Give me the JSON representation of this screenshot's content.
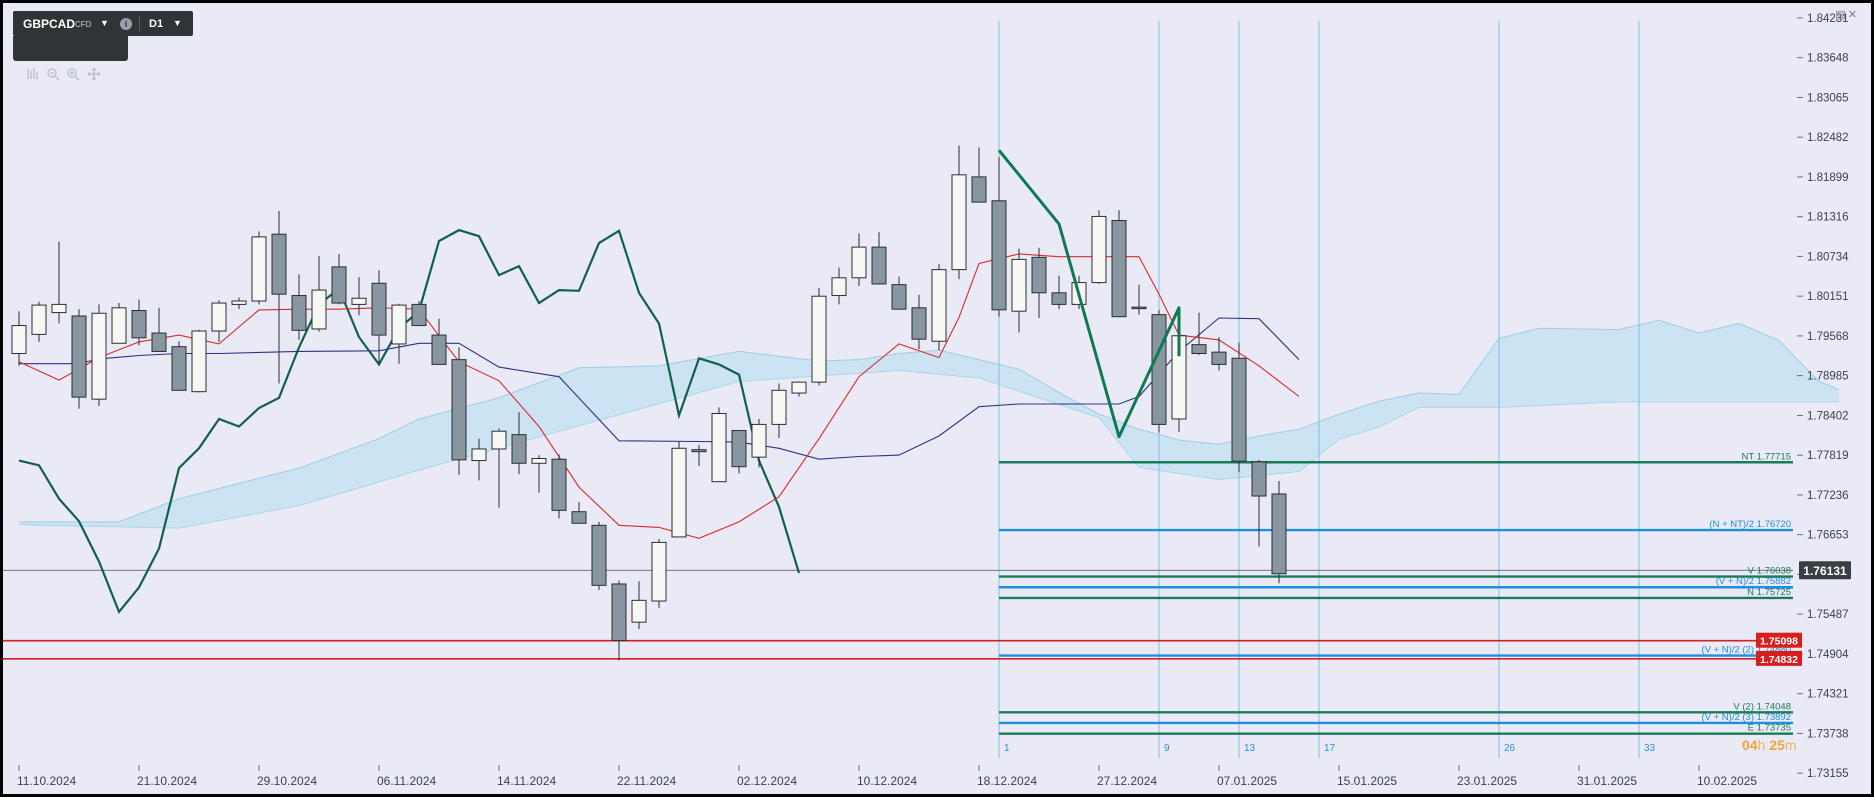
{
  "toolbar": {
    "symbol": "GBPCAD",
    "instrument_type": "CFD",
    "info_icon": "info-icon",
    "timeframe": "D1",
    "tools": [
      "indicators-icon",
      "zoom-out-icon",
      "zoom-in-icon",
      "crosshair-icon"
    ]
  },
  "window_controls": [
    "restore-icon",
    "close-icon"
  ],
  "countdown": {
    "hours": "04",
    "h_unit": "h",
    "minutes": "25",
    "m_unit": "m"
  },
  "colors": {
    "background": "#e9eaf5",
    "candle_bull": "#f7f7f4",
    "candle_bear": "#87969f",
    "tenkan": "#d92b2b",
    "kijun": "#2e3285",
    "chikou": "#11604a",
    "kumo": "#bcdff0",
    "wave": "#0f7a52",
    "target_blue": "#1e8ee0",
    "target_green": "#1a7a5a",
    "red_level": "#d81e1e",
    "current_price_bg": "#3a3f44"
  },
  "chart_data": {
    "type": "candlestick",
    "title": "GBPCAD CFD D1",
    "ylim": [
      1.7285,
      1.8445
    ],
    "y_ticks": [
      "1.84231",
      "1.83648",
      "1.83065",
      "1.82482",
      "1.81899",
      "1.81316",
      "1.80734",
      "1.80151",
      "1.79568",
      "1.78985",
      "1.78402",
      "1.77819",
      "1.77236",
      "1.76653",
      "1.76070",
      "1.75487",
      "1.74904",
      "1.74321",
      "1.73738",
      "1.73155"
    ],
    "x_labels": [
      {
        "i": 0,
        "label": "11.10.2024"
      },
      {
        "i": 6,
        "label": "21.10.2024"
      },
      {
        "i": 12,
        "label": "29.10.2024"
      },
      {
        "i": 18,
        "label": "06.11.2024"
      },
      {
        "i": 24,
        "label": "14.11.2024"
      },
      {
        "i": 30,
        "label": "22.11.2024"
      },
      {
        "i": 36,
        "label": "02.12.2024"
      },
      {
        "i": 42,
        "label": "10.12.2024"
      },
      {
        "i": 48,
        "label": "18.12.2024"
      },
      {
        "i": 54,
        "label": "27.12.2024"
      },
      {
        "i": 60,
        "label": "07.01.2025"
      },
      {
        "i": 66,
        "label": "15.01.2025"
      },
      {
        "i": 72,
        "label": "23.01.2025"
      },
      {
        "i": 78,
        "label": "31.01.2025"
      },
      {
        "i": 84,
        "label": "10.02.2025"
      }
    ],
    "candles": [
      {
        "o": 1.7931,
        "h": 1.7993,
        "l": 1.7913,
        "c": 1.7972
      },
      {
        "o": 1.7959,
        "h": 1.8007,
        "l": 1.7948,
        "c": 1.8002
      },
      {
        "o": 1.7991,
        "h": 1.8095,
        "l": 1.7975,
        "c": 1.8003
      },
      {
        "o": 1.7986,
        "h": 1.7996,
        "l": 1.785,
        "c": 1.7867
      },
      {
        "o": 1.7864,
        "h": 1.8003,
        "l": 1.7854,
        "c": 1.799
      },
      {
        "o": 1.7946,
        "h": 1.8005,
        "l": 1.7948,
        "c": 1.7998
      },
      {
        "o": 1.7994,
        "h": 1.801,
        "l": 1.7943,
        "c": 1.7954
      },
      {
        "o": 1.7961,
        "h": 1.7998,
        "l": 1.7936,
        "c": 1.7934
      },
      {
        "o": 1.7941,
        "h": 1.7949,
        "l": 1.7876,
        "c": 1.7877
      },
      {
        "o": 1.7875,
        "h": 1.7966,
        "l": 1.7874,
        "c": 1.7964
      },
      {
        "o": 1.7964,
        "h": 1.8009,
        "l": 1.7948,
        "c": 1.8005
      },
      {
        "o": 1.8003,
        "h": 1.8013,
        "l": 1.7996,
        "c": 1.8008
      },
      {
        "o": 1.8008,
        "h": 1.811,
        "l": 1.8003,
        "c": 1.8102
      },
      {
        "o": 1.8106,
        "h": 1.814,
        "l": 1.7887,
        "c": 1.8018
      },
      {
        "o": 1.8016,
        "h": 1.8047,
        "l": 1.7951,
        "c": 1.7965
      },
      {
        "o": 1.7967,
        "h": 1.8074,
        "l": 1.7963,
        "c": 1.8024
      },
      {
        "o": 1.8058,
        "h": 1.8077,
        "l": 1.8003,
        "c": 1.8005
      },
      {
        "o": 1.8003,
        "h": 1.8043,
        "l": 1.7987,
        "c": 1.8012
      },
      {
        "o": 1.8034,
        "h": 1.8053,
        "l": 1.7914,
        "c": 1.7958
      },
      {
        "o": 1.7945,
        "h": 1.8004,
        "l": 1.7916,
        "c": 1.8002
      },
      {
        "o": 1.8003,
        "h": 1.8008,
        "l": 1.7971,
        "c": 1.7972
      },
      {
        "o": 1.7958,
        "h": 1.7982,
        "l": 1.7918,
        "c": 1.7915
      },
      {
        "o": 1.7922,
        "h": 1.794,
        "l": 1.7753,
        "c": 1.7775
      },
      {
        "o": 1.7774,
        "h": 1.7806,
        "l": 1.7745,
        "c": 1.7791
      },
      {
        "o": 1.7791,
        "h": 1.7821,
        "l": 1.7705,
        "c": 1.7817
      },
      {
        "o": 1.7812,
        "h": 1.7845,
        "l": 1.7754,
        "c": 1.777
      },
      {
        "o": 1.777,
        "h": 1.7782,
        "l": 1.7727,
        "c": 1.7777
      },
      {
        "o": 1.7776,
        "h": 1.7783,
        "l": 1.7689,
        "c": 1.7701
      },
      {
        "o": 1.7699,
        "h": 1.7713,
        "l": 1.7684,
        "c": 1.7682
      },
      {
        "o": 1.7679,
        "h": 1.7684,
        "l": 1.7584,
        "c": 1.7591
      },
      {
        "o": 1.7593,
        "h": 1.7598,
        "l": 1.7481,
        "c": 1.751
      },
      {
        "o": 1.7537,
        "h": 1.7597,
        "l": 1.7527,
        "c": 1.7569
      },
      {
        "o": 1.7568,
        "h": 1.7659,
        "l": 1.7558,
        "c": 1.7654
      },
      {
        "o": 1.7662,
        "h": 1.7802,
        "l": 1.7662,
        "c": 1.7792
      },
      {
        "o": 1.779,
        "h": 1.7797,
        "l": 1.7766,
        "c": 1.7787
      },
      {
        "o": 1.7743,
        "h": 1.7852,
        "l": 1.7749,
        "c": 1.7843
      },
      {
        "o": 1.7818,
        "h": 1.7813,
        "l": 1.7755,
        "c": 1.7765
      },
      {
        "o": 1.7779,
        "h": 1.7835,
        "l": 1.7764,
        "c": 1.7827
      },
      {
        "o": 1.7827,
        "h": 1.7887,
        "l": 1.7807,
        "c": 1.7877
      },
      {
        "o": 1.7873,
        "h": 1.789,
        "l": 1.7868,
        "c": 1.7889
      },
      {
        "o": 1.7889,
        "h": 1.8027,
        "l": 1.7884,
        "c": 1.8015
      },
      {
        "o": 1.8016,
        "h": 1.8057,
        "l": 1.8003,
        "c": 1.8042
      },
      {
        "o": 1.8042,
        "h": 1.8107,
        "l": 1.803,
        "c": 1.8087
      },
      {
        "o": 1.8087,
        "h": 1.8109,
        "l": 1.8032,
        "c": 1.8033
      },
      {
        "o": 1.8032,
        "h": 1.8044,
        "l": 1.7995,
        "c": 1.7996
      },
      {
        "o": 1.7998,
        "h": 1.8017,
        "l": 1.7937,
        "c": 1.7952
      },
      {
        "o": 1.7949,
        "h": 1.8062,
        "l": 1.7936,
        "c": 1.8054
      },
      {
        "o": 1.8054,
        "h": 1.8236,
        "l": 1.804,
        "c": 1.8193
      },
      {
        "o": 1.819,
        "h": 1.8233,
        "l": 1.8152,
        "c": 1.8153
      },
      {
        "o": 1.8155,
        "h": 1.8219,
        "l": 1.7985,
        "c": 1.7995
      },
      {
        "o": 1.7993,
        "h": 1.8085,
        "l": 1.7962,
        "c": 1.8069
      },
      {
        "o": 1.8072,
        "h": 1.8086,
        "l": 1.7983,
        "c": 1.802
      },
      {
        "o": 1.802,
        "h": 1.8045,
        "l": 1.7996,
        "c": 1.8003
      },
      {
        "o": 1.8003,
        "h": 1.8045,
        "l": 1.7996,
        "c": 1.8035
      },
      {
        "o": 1.8035,
        "h": 1.8141,
        "l": 1.8033,
        "c": 1.8132
      },
      {
        "o": 1.8126,
        "h": 1.8141,
        "l": 1.7984,
        "c": 1.7985
      },
      {
        "o": 1.7999,
        "h": 1.8032,
        "l": 1.7988,
        "c": 1.7998
      },
      {
        "o": 1.7988,
        "h": 1.7995,
        "l": 1.7815,
        "c": 1.7827
      },
      {
        "o": 1.7835,
        "h": 1.7984,
        "l": 1.7816,
        "c": 1.7957
      },
      {
        "o": 1.7944,
        "h": 1.7991,
        "l": 1.7929,
        "c": 1.7931
      },
      {
        "o": 1.7933,
        "h": 1.7955,
        "l": 1.7906,
        "c": 1.7915
      },
      {
        "o": 1.7924,
        "h": 1.7947,
        "l": 1.7757,
        "c": 1.7773
      },
      {
        "o": 1.7772,
        "h": 1.7775,
        "l": 1.7648,
        "c": 1.7722
      },
      {
        "o": 1.7725,
        "h": 1.7744,
        "l": 1.7594,
        "c": 1.7608
      }
    ],
    "tenkan_sen": [
      [
        0,
        1.7919
      ],
      [
        2,
        1.7892
      ],
      [
        4,
        1.7925
      ],
      [
        6,
        1.7948
      ],
      [
        8,
        1.7958
      ],
      [
        10,
        1.7945
      ],
      [
        12,
        1.7995
      ],
      [
        14,
        1.7996
      ],
      [
        16,
        1.7996
      ],
      [
        18,
        1.7998
      ],
      [
        20,
        1.7996
      ],
      [
        21,
        1.7957
      ],
      [
        22,
        1.7919
      ],
      [
        24,
        1.7891
      ],
      [
        26,
        1.7824
      ],
      [
        28,
        1.7735
      ],
      [
        30,
        1.7679
      ],
      [
        32,
        1.7676
      ],
      [
        34,
        1.766
      ],
      [
        36,
        1.7684
      ],
      [
        38,
        1.7721
      ],
      [
        40,
        1.7806
      ],
      [
        42,
        1.7897
      ],
      [
        44,
        1.7945
      ],
      [
        46,
        1.7925
      ],
      [
        47,
        1.7984
      ],
      [
        48,
        1.8063
      ],
      [
        50,
        1.8077
      ],
      [
        52,
        1.8073
      ],
      [
        54,
        1.8073
      ],
      [
        56,
        1.8073
      ],
      [
        57,
        1.8018
      ],
      [
        58,
        1.7958
      ],
      [
        60,
        1.7951
      ],
      [
        62,
        1.7913
      ],
      [
        64,
        1.7868
      ]
    ],
    "kijun_sen": [
      [
        0,
        1.7916
      ],
      [
        3,
        1.7916
      ],
      [
        4,
        1.7923
      ],
      [
        6,
        1.7928
      ],
      [
        8,
        1.7931
      ],
      [
        10,
        1.7931
      ],
      [
        14,
        1.7934
      ],
      [
        18,
        1.7935
      ],
      [
        20,
        1.7946
      ],
      [
        22,
        1.7946
      ],
      [
        24,
        1.7911
      ],
      [
        27,
        1.7897
      ],
      [
        30,
        1.7803
      ],
      [
        34,
        1.7802
      ],
      [
        36,
        1.7801
      ],
      [
        38,
        1.7792
      ],
      [
        40,
        1.7776
      ],
      [
        42,
        1.778
      ],
      [
        44,
        1.7782
      ],
      [
        46,
        1.781
      ],
      [
        48,
        1.7853
      ],
      [
        50,
        1.7857
      ],
      [
        52,
        1.7857
      ],
      [
        55,
        1.7857
      ],
      [
        56,
        1.7868
      ],
      [
        58,
        1.7934
      ],
      [
        60,
        1.7983
      ],
      [
        62,
        1.7982
      ],
      [
        64,
        1.7922
      ]
    ],
    "chikou_span": [
      [
        0,
        1.7774
      ],
      [
        1,
        1.7767
      ],
      [
        2,
        1.7718
      ],
      [
        3,
        1.7685
      ],
      [
        4,
        1.7626
      ],
      [
        5,
        1.7552
      ],
      [
        6,
        1.7588
      ],
      [
        7,
        1.7645
      ],
      [
        8,
        1.7763
      ],
      [
        9,
        1.7792
      ],
      [
        10,
        1.7835
      ],
      [
        11,
        1.7824
      ],
      [
        12,
        1.7851
      ],
      [
        13,
        1.7866
      ],
      [
        14,
        1.794
      ],
      [
        15,
        1.8003
      ],
      [
        16,
        1.8026
      ],
      [
        17,
        1.7955
      ],
      [
        18,
        1.7915
      ],
      [
        19,
        1.7968
      ],
      [
        20,
        1.7993
      ],
      [
        21,
        1.8096
      ],
      [
        22,
        1.8112
      ],
      [
        23,
        1.8103
      ],
      [
        24,
        1.8046
      ],
      [
        25,
        1.8059
      ],
      [
        26,
        1.8005
      ],
      [
        27,
        1.8024
      ],
      [
        28,
        1.8023
      ],
      [
        29,
        1.8093
      ],
      [
        30,
        1.8111
      ],
      [
        31,
        1.802
      ],
      [
        32,
        1.7975
      ],
      [
        33,
        1.784
      ],
      [
        34,
        1.7924
      ],
      [
        35,
        1.7915
      ],
      [
        36,
        1.79
      ],
      [
        37,
        1.7774
      ],
      [
        38,
        1.7706
      ],
      [
        39,
        1.7609
      ]
    ],
    "senkou_span_a": [
      [
        0,
        1.7684
      ],
      [
        5,
        1.7684
      ],
      [
        8,
        1.7718
      ],
      [
        14,
        1.7763
      ],
      [
        18,
        1.7806
      ],
      [
        20,
        1.7835
      ],
      [
        24,
        1.7866
      ],
      [
        28,
        1.791
      ],
      [
        32,
        1.7913
      ],
      [
        36,
        1.7934
      ],
      [
        40,
        1.792
      ],
      [
        42,
        1.7922
      ],
      [
        44,
        1.7931
      ],
      [
        46,
        1.7936
      ],
      [
        48,
        1.7922
      ],
      [
        50,
        1.7908
      ],
      [
        52,
        1.7874
      ],
      [
        54,
        1.7842
      ],
      [
        56,
        1.782
      ],
      [
        58,
        1.7804
      ],
      [
        60,
        1.7798
      ],
      [
        62,
        1.781
      ],
      [
        64,
        1.782
      ],
      [
        66,
        1.7842
      ],
      [
        68,
        1.7861
      ],
      [
        70,
        1.7873
      ],
      [
        72,
        1.7871
      ],
      [
        74,
        1.7953
      ],
      [
        76,
        1.7968
      ],
      [
        80,
        1.7966
      ],
      [
        82,
        1.798
      ],
      [
        84,
        1.7961
      ],
      [
        86,
        1.7975
      ],
      [
        88,
        1.795
      ],
      [
        90,
        1.789
      ],
      [
        91,
        1.7878
      ]
    ],
    "senkou_span_b": [
      [
        0,
        1.768
      ],
      [
        8,
        1.7675
      ],
      [
        14,
        1.7708
      ],
      [
        20,
        1.776
      ],
      [
        28,
        1.7825
      ],
      [
        36,
        1.789
      ],
      [
        44,
        1.7906
      ],
      [
        48,
        1.7895
      ],
      [
        54,
        1.7837
      ],
      [
        56,
        1.7764
      ],
      [
        60,
        1.7746
      ],
      [
        64,
        1.7758
      ],
      [
        66,
        1.7805
      ],
      [
        68,
        1.7823
      ],
      [
        70,
        1.7852
      ],
      [
        74,
        1.7852
      ],
      [
        80,
        1.786
      ],
      [
        91,
        1.786
      ]
    ],
    "wave_points": [
      [
        49,
        1.8229
      ],
      [
        52,
        1.8121
      ],
      [
        55,
        1.7809
      ],
      [
        58,
        1.7998
      ],
      [
        58,
        1.7927
      ]
    ],
    "price_levels": [
      {
        "label": "NT 1.77715",
        "value": 1.77715,
        "color": "#1a7a5a",
        "from": 49
      },
      {
        "label": "(N + NT)/2 1.76720",
        "value": 1.7672,
        "color": "#1e8ee0",
        "from": 49
      },
      {
        "label": "V 1.76038",
        "value": 1.76038,
        "color": "#1a7a5a",
        "from": 49
      },
      {
        "label": "(V + N)/2 1.75882",
        "value": 1.75882,
        "color": "#1e8ee0",
        "from": 49
      },
      {
        "label": "N 1.75725",
        "value": 1.75725,
        "color": "#1a7a5a",
        "from": 49
      },
      {
        "label": "(V + N)/2 (2) 1.74880",
        "value": 1.7488,
        "color": "#1e8ee0",
        "from": 49
      },
      {
        "label": "V (2) 1.74048",
        "value": 1.74048,
        "color": "#1a7a5a",
        "from": 49
      },
      {
        "label": "(V + N)/2 (3) 1.73892",
        "value": 1.73892,
        "color": "#1e8ee0",
        "from": 49
      },
      {
        "label": "E 1.73735",
        "value": 1.73735,
        "color": "#1a7a5a",
        "from": 49
      }
    ],
    "red_levels": [
      {
        "value": 1.75098,
        "label": "1.75098"
      },
      {
        "value": 1.74832,
        "label": "1.74832"
      }
    ],
    "current_price": {
      "value": 1.76131,
      "label": "1.76131"
    },
    "time_cycles": [
      {
        "i": 49,
        "label": "1"
      },
      {
        "i": 57,
        "label": "9"
      },
      {
        "i": 61,
        "label": "13"
      },
      {
        "i": 65,
        "label": "17"
      },
      {
        "i": 74,
        "label": "26"
      },
      {
        "i": 81,
        "label": "33"
      }
    ]
  }
}
